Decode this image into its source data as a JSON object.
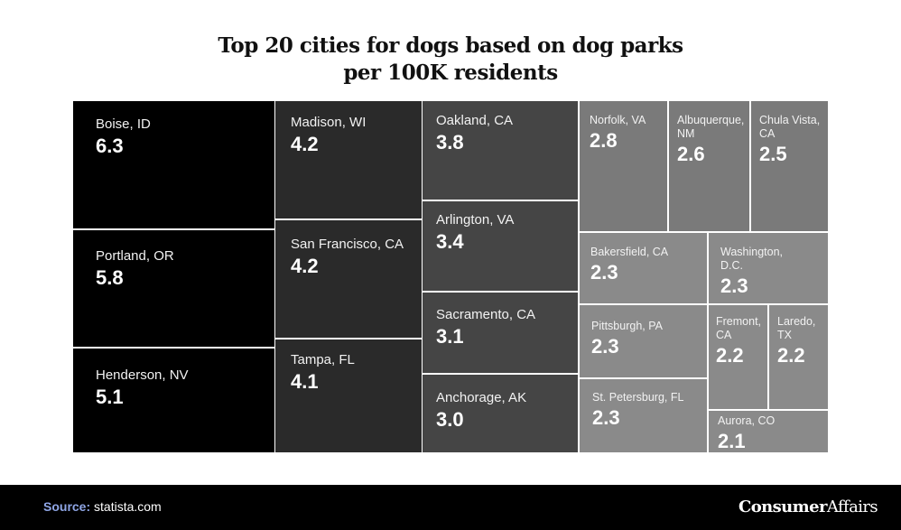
{
  "chart_data": {
    "type": "treemap",
    "title_lines": [
      "Top 20 cities for dogs based on dog parks",
      "per 100K residents"
    ],
    "items": [
      {
        "city": "Boise, ID",
        "value": 6.3
      },
      {
        "city": "Portland, OR",
        "value": 5.8
      },
      {
        "city": "Henderson, NV",
        "value": 5.1
      },
      {
        "city": "Madison, WI",
        "value": 4.2
      },
      {
        "city": "San Francisco, CA",
        "value": 4.2
      },
      {
        "city": "Tampa, FL",
        "value": 4.1
      },
      {
        "city": "Oakland, CA",
        "value": 3.8
      },
      {
        "city": "Arlington, VA",
        "value": 3.4
      },
      {
        "city": "Sacramento, CA",
        "value": 3.1
      },
      {
        "city": "Anchorage, AK",
        "value": 3.0
      },
      {
        "city": "Norfolk, VA",
        "value": 2.8
      },
      {
        "city": "Albuquerque, NM",
        "value": 2.6
      },
      {
        "city": "Chula Vista, CA",
        "value": 2.5
      },
      {
        "city": "Bakersfield, CA",
        "value": 2.3
      },
      {
        "city": "Washington, D.C.",
        "value": 2.3
      },
      {
        "city": "Pittsburgh, PA",
        "value": 2.3
      },
      {
        "city": "St. Petersburg, FL",
        "value": 2.3
      },
      {
        "city": "Fremont, CA",
        "value": 2.2
      },
      {
        "city": "Laredo, TX",
        "value": 2.2
      },
      {
        "city": "Aurora, CO",
        "value": 2.1
      }
    ],
    "colors": {
      "g1": "#000000",
      "g2": "#2a2a2a",
      "g3": "#454545",
      "g4": "#7a7a7a",
      "g5": "#8a8a8a"
    }
  },
  "footer": {
    "source_label": "Source:",
    "source_text": "statista.com",
    "brand_a": "Consumer",
    "brand_b": "Affairs"
  }
}
